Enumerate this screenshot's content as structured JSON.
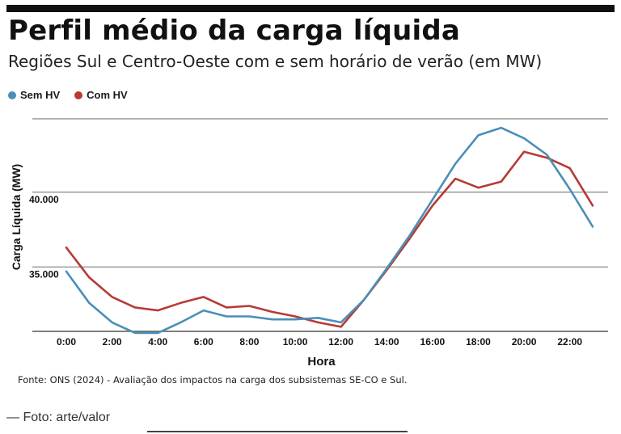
{
  "title": "Perfil médio da carga líquida",
  "subtitle": "Regiões Sul e Centro-Oeste com e sem horário de verão (em MW)",
  "colors": {
    "sem_hv": "#4a8fb8",
    "com_hv": "#b83a34",
    "grid": "#9a9a9a"
  },
  "chart_data": {
    "type": "line",
    "title": "Perfil médio da carga líquida",
    "subtitle": "Regiões Sul e Centro-Oeste com e sem horário de verão (em MW)",
    "xlabel": "Hora",
    "ylabel": "Carga Líquida (MW)",
    "x": [
      0,
      1,
      2,
      3,
      4,
      5,
      6,
      7,
      8,
      9,
      10,
      11,
      12,
      13,
      14,
      15,
      16,
      17,
      18,
      19,
      20,
      21,
      22,
      23
    ],
    "x_ticks": [
      0,
      2,
      4,
      6,
      8,
      10,
      12,
      14,
      16,
      18,
      20,
      22
    ],
    "x_tick_labels": [
      "0:00",
      "2:00",
      "4:00",
      "6:00",
      "8:00",
      "10:00",
      "12:00",
      "14:00",
      "16:00",
      "18:00",
      "20:00",
      "22:00"
    ],
    "y_ticks": [
      35000,
      40000
    ],
    "y_tick_labels": [
      "35.000",
      "40.000"
    ],
    "ylim": [
      30700,
      44900
    ],
    "grid": true,
    "legend_position": "top-left",
    "series": [
      {
        "name": "Sem HV",
        "color": "#4a8fb8",
        "values": [
          34700,
          32600,
          31300,
          30600,
          30600,
          31300,
          32100,
          31700,
          31700,
          31500,
          31500,
          31600,
          31300,
          32800,
          34900,
          37100,
          39500,
          41900,
          43800,
          44300,
          43600,
          42500,
          40200,
          37700
        ]
      },
      {
        "name": "Com HV",
        "color": "#b83a34",
        "values": [
          36300,
          34300,
          33000,
          32300,
          32100,
          32600,
          33000,
          32300,
          32400,
          32000,
          31700,
          31300,
          31000,
          32800,
          34800,
          36900,
          39100,
          40900,
          40300,
          40700,
          42700,
          42300,
          41600,
          39100
        ]
      }
    ]
  },
  "source": "Fonte: ONS (2024) - Avaliação dos impactos na carga dos subsistemas SE-CO e Sul.",
  "credit": "— Foto: arte/valor"
}
